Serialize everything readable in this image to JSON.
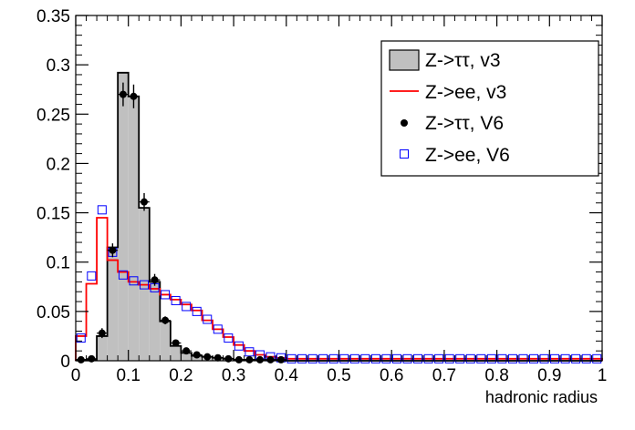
{
  "chart_data": {
    "type": "bar",
    "xlabel": "hadronic radius",
    "ylabel": "",
    "xlim": [
      0,
      1
    ],
    "ylim": [
      0,
      0.35
    ],
    "bin_width": 0.02,
    "x_ticks": [
      0,
      0.1,
      0.2,
      0.3,
      0.4,
      0.5,
      0.6,
      0.7,
      0.8,
      0.9,
      1
    ],
    "x_tick_labels": [
      "0",
      "0.1",
      "0.2",
      "0.3",
      "0.4",
      "0.5",
      "0.6",
      "0.7",
      "0.8",
      "0.9",
      "1"
    ],
    "y_ticks": [
      0,
      0.05,
      0.1,
      0.15,
      0.2,
      0.25,
      0.3,
      0.35
    ],
    "y_tick_labels": [
      "0",
      "0.05",
      "0.1",
      "0.15",
      "0.2",
      "0.25",
      "0.3",
      "0.35"
    ],
    "legend_position": "top-right",
    "grid": false,
    "colors": {
      "tautau_fill": "#c0c0c0",
      "line": "#000000",
      "ee_line": "#ff0000",
      "ee_marker": "#0000ff"
    },
    "series": [
      {
        "name": "Z->ττ, v3",
        "style": "filled-histogram",
        "values": [
          0.001,
          0.001,
          0.025,
          0.115,
          0.292,
          0.268,
          0.155,
          0.08,
          0.04,
          0.015,
          0.008,
          0.005,
          0.004,
          0.003,
          0.002,
          0.001,
          0.001,
          0.001,
          0.001,
          0.001,
          0,
          0,
          0,
          0,
          0,
          0,
          0,
          0,
          0,
          0,
          0,
          0,
          0,
          0,
          0,
          0,
          0,
          0,
          0,
          0,
          0,
          0,
          0,
          0,
          0,
          0,
          0,
          0,
          0,
          0
        ]
      },
      {
        "name": "Z->ee, v3",
        "style": "line-histogram",
        "values": [
          0.025,
          0.078,
          0.145,
          0.102,
          0.09,
          0.08,
          0.077,
          0.073,
          0.067,
          0.062,
          0.057,
          0.051,
          0.041,
          0.032,
          0.024,
          0.016,
          0.01,
          0.006,
          0.004,
          0.003,
          0.002,
          0.002,
          0.002,
          0.002,
          0.002,
          0.002,
          0.002,
          0.002,
          0.002,
          0.002,
          0.002,
          0.002,
          0.002,
          0.002,
          0.002,
          0.002,
          0.002,
          0.002,
          0.002,
          0.002,
          0.002,
          0.002,
          0.002,
          0.002,
          0.002,
          0.002,
          0.002,
          0.002,
          0.002,
          0.002
        ]
      },
      {
        "name": "Z->ττ, V6",
        "style": "points-with-errors",
        "values": [
          0.001,
          0.002,
          0.028,
          0.112,
          0.27,
          0.268,
          0.161,
          0.082,
          0.041,
          0.018,
          0.01,
          0.006,
          0.004,
          0.003,
          0.002,
          0.001,
          0.001,
          0.001,
          0.001,
          0.001
        ],
        "errors": [
          0.002,
          0.003,
          0.005,
          0.007,
          0.012,
          0.012,
          0.009,
          0.006,
          0.004,
          0.003,
          0.002,
          0.002,
          0.002,
          0.001,
          0.001,
          0.001,
          0.001,
          0.001,
          0.001,
          0.001
        ]
      },
      {
        "name": "Z->ee, V6",
        "style": "open-squares",
        "values": [
          0.023,
          0.086,
          0.153,
          0.11,
          0.087,
          0.081,
          0.077,
          0.074,
          0.067,
          0.061,
          0.055,
          0.05,
          0.042,
          0.032,
          0.023,
          0.015,
          0.009,
          0.006,
          0.004,
          0.003,
          0.002,
          0.002,
          0.002,
          0.002,
          0.002,
          0.002,
          0.002,
          0.002,
          0.002,
          0.002,
          0.002,
          0.002,
          0.002,
          0.002,
          0.002,
          0.002,
          0.002,
          0.002,
          0.002,
          0.002,
          0.002,
          0.002,
          0.002,
          0.002,
          0.002,
          0.002,
          0.002,
          0.002,
          0.002,
          0.002
        ]
      }
    ]
  }
}
